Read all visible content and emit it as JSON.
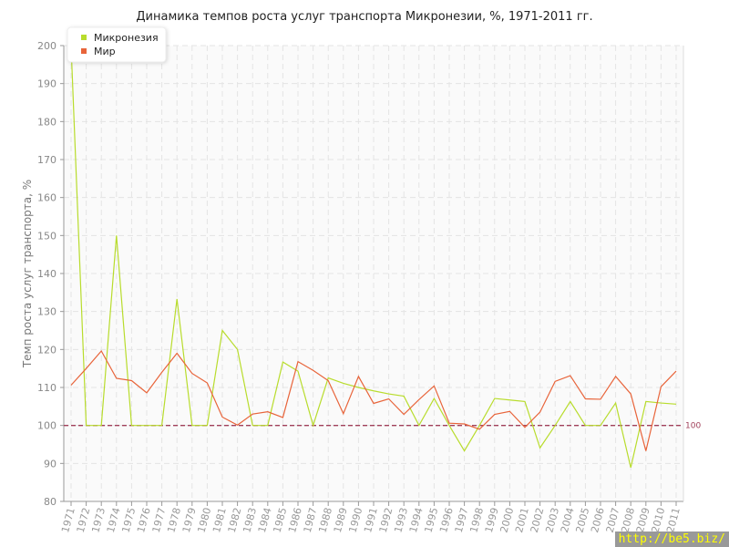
{
  "chart_data": {
    "type": "line",
    "title": "Динамика темпов роста услуг транспорта Микронезии, %, 1971-2011 гг.",
    "ylabel": "Темп роста услуг транспорта, %",
    "xlabel": "",
    "ylim": [
      80,
      200
    ],
    "yticks": [
      80,
      90,
      100,
      110,
      120,
      130,
      140,
      150,
      160,
      170,
      180,
      190,
      200
    ],
    "grid": true,
    "legend_position": "top-left",
    "reference_line": {
      "value": 100,
      "label": "100",
      "color": "#a0405a"
    },
    "x": [
      1971,
      1972,
      1973,
      1974,
      1975,
      1976,
      1977,
      1978,
      1979,
      1980,
      1981,
      1982,
      1983,
      1984,
      1985,
      1986,
      1987,
      1988,
      1989,
      1990,
      1991,
      1992,
      1993,
      1994,
      1995,
      1996,
      1997,
      1998,
      1999,
      2000,
      2001,
      2002,
      2003,
      2004,
      2005,
      2006,
      2007,
      2008,
      2009,
      2010,
      2011
    ],
    "series": [
      {
        "name": "Микронезия",
        "color": "#b8dc2c",
        "values": [
          200,
          100,
          100,
          150,
          100,
          100,
          100,
          133.3,
          100,
          100,
          125,
          120,
          100,
          100,
          116.7,
          114.3,
          100,
          112.5,
          111.1,
          110,
          109.1,
          108.3,
          107.7,
          100,
          107.1,
          100,
          93.3,
          100,
          107.1,
          106.7,
          106.3,
          94.1,
          100,
          106.3,
          100,
          100,
          105.9,
          88.9,
          106.3,
          105.9,
          105.6
        ]
      },
      {
        "name": "Мир",
        "color": "#e8643a",
        "values": [
          110.6,
          115,
          119.6,
          112.4,
          111.8,
          108.6,
          114,
          119,
          113.7,
          111.2,
          102.2,
          100.1,
          103,
          103.6,
          102.1,
          116.8,
          114.5,
          111.8,
          103.1,
          112.9,
          105.8,
          107,
          102.9,
          106.8,
          110.4,
          100.6,
          100.4,
          99,
          102.9,
          103.7,
          99.5,
          103.5,
          111.6,
          113.1,
          107,
          106.9,
          112.9,
          108.3,
          93.3,
          110.2,
          114.3
        ]
      }
    ]
  },
  "watermark": "http://be5.biz/"
}
